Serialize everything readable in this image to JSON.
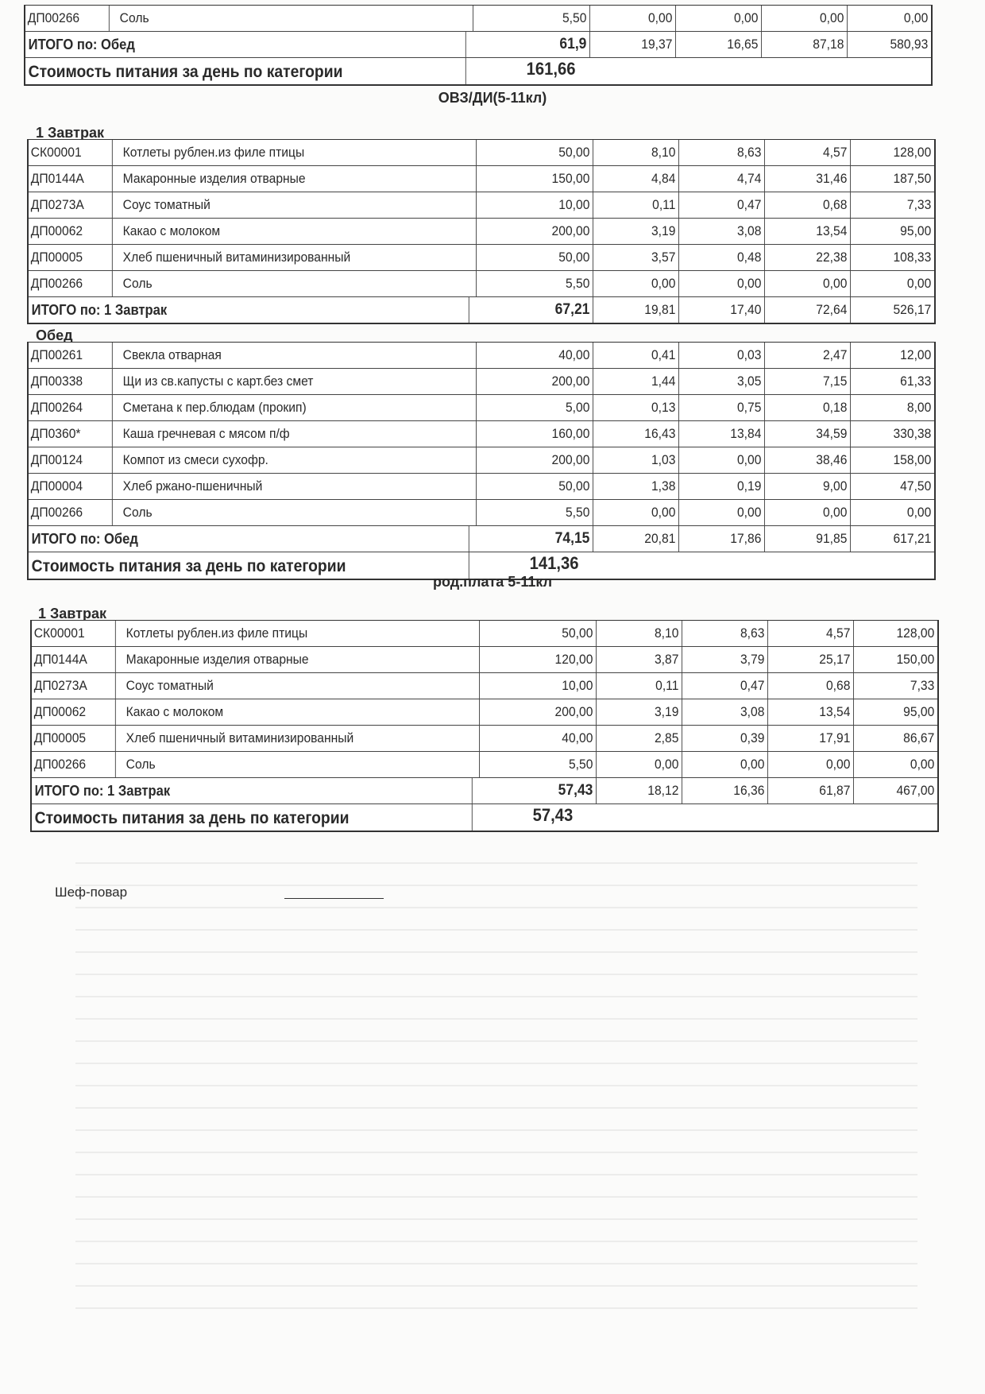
{
  "blocks": [
    {
      "category": "",
      "sections": [
        {
          "title": "",
          "rows": [
            [
              "ДП00266",
              "Соль",
              "5,50",
              "0,00",
              "0,00",
              "0,00",
              "0,00"
            ]
          ],
          "total": {
            "label": "ИТОГО по: Обед",
            "values": [
              "61,9",
              "19,37",
              "16,65",
              "87,18",
              "580,93"
            ]
          }
        }
      ],
      "cost": {
        "label": "Стоимость питания за день по категории",
        "value": "161,66"
      }
    },
    {
      "category": "ОВЗ/ДИ(5-11кл)",
      "sections": [
        {
          "title": "1 Завтрак",
          "rows": [
            [
              "СК00001",
              "Котлеты рублен.из филе птицы",
              "50,00",
              "8,10",
              "8,63",
              "4,57",
              "128,00"
            ],
            [
              "ДП0144А",
              "Макаронные изделия отварные",
              "150,00",
              "4,84",
              "4,74",
              "31,46",
              "187,50"
            ],
            [
              "ДП0273А",
              "Соус томатный",
              "10,00",
              "0,11",
              "0,47",
              "0,68",
              "7,33"
            ],
            [
              "ДП00062",
              "Какао с молоком",
              "200,00",
              "3,19",
              "3,08",
              "13,54",
              "95,00"
            ],
            [
              "ДП00005",
              "Хлеб пшеничный витаминизированный",
              "50,00",
              "3,57",
              "0,48",
              "22,38",
              "108,33"
            ],
            [
              "ДП00266",
              "Соль",
              "5,50",
              "0,00",
              "0,00",
              "0,00",
              "0,00"
            ]
          ],
          "total": {
            "label": "ИТОГО по: 1 Завтрак",
            "values": [
              "67,21",
              "19,81",
              "17,40",
              "72,64",
              "526,17"
            ]
          }
        },
        {
          "title": "Обед",
          "rows": [
            [
              "ДП00261",
              "Свекла отварная",
              "40,00",
              "0,41",
              "0,03",
              "2,47",
              "12,00"
            ],
            [
              "ДП00338",
              "Щи из св.капусты с карт.без смет",
              "200,00",
              "1,44",
              "3,05",
              "7,15",
              "61,33"
            ],
            [
              "ДП00264",
              "Сметана к пер.блюдам (прокип)",
              "5,00",
              "0,13",
              "0,75",
              "0,18",
              "8,00"
            ],
            [
              "ДП0360*",
              "Каша гречневая с мясом п/ф",
              "160,00",
              "16,43",
              "13,84",
              "34,59",
              "330,38"
            ],
            [
              "ДП00124",
              "Компот из смеси сухофр.",
              "200,00",
              "1,03",
              "0,00",
              "38,46",
              "158,00"
            ],
            [
              "ДП00004",
              "Хлеб ржано-пшеничный",
              "50,00",
              "1,38",
              "0,19",
              "9,00",
              "47,50"
            ],
            [
              "ДП00266",
              "Соль",
              "5,50",
              "0,00",
              "0,00",
              "0,00",
              "0,00"
            ]
          ],
          "total": {
            "label": "ИТОГО по: Обед",
            "values": [
              "74,15",
              "20,81",
              "17,86",
              "91,85",
              "617,21"
            ]
          }
        }
      ],
      "cost": {
        "label": "Стоимость питания за день по категории",
        "value": "141,36"
      }
    },
    {
      "category": "род.плата 5-11кл",
      "sections": [
        {
          "title": "1 Завтрак",
          "rows": [
            [
              "СК00001",
              "Котлеты рублен.из филе птицы",
              "50,00",
              "8,10",
              "8,63",
              "4,57",
              "128,00"
            ],
            [
              "ДП0144А",
              "Макаронные изделия отварные",
              "120,00",
              "3,87",
              "3,79",
              "25,17",
              "150,00"
            ],
            [
              "ДП0273А",
              "Соус томатный",
              "10,00",
              "0,11",
              "0,47",
              "0,68",
              "7,33"
            ],
            [
              "ДП00062",
              "Какао с молоком",
              "200,00",
              "3,19",
              "3,08",
              "13,54",
              "95,00"
            ],
            [
              "ДП00005",
              "Хлеб пшеничный витаминизированный",
              "40,00",
              "2,85",
              "0,39",
              "17,91",
              "86,67"
            ],
            [
              "ДП00266",
              "Соль",
              "5,50",
              "0,00",
              "0,00",
              "0,00",
              "0,00"
            ]
          ],
          "total": {
            "label": "ИТОГО по: 1 Завтрак",
            "values": [
              "57,43",
              "18,12",
              "16,36",
              "61,87",
              "467,00"
            ]
          }
        }
      ],
      "cost": {
        "label": "Стоимость питания за день по категории",
        "value": "57,43"
      }
    }
  ],
  "signature": {
    "label": "Шеф-повар"
  }
}
